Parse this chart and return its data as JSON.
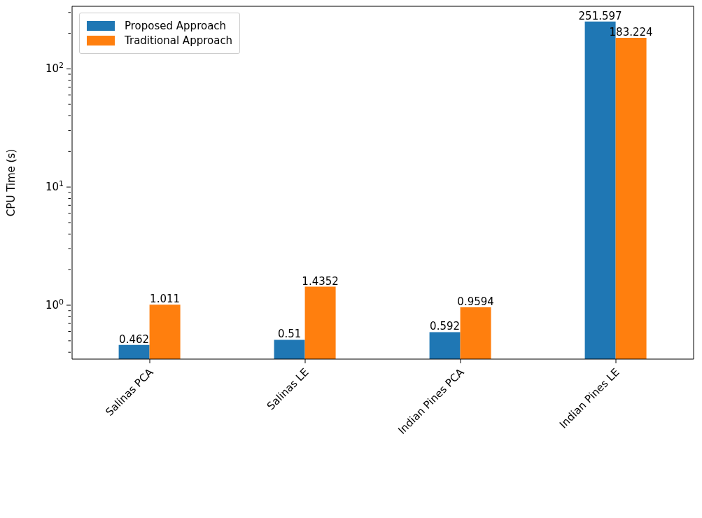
{
  "chart_data": {
    "type": "bar",
    "ylabel": "CPU Time (s)",
    "categories": [
      "Salinas PCA",
      "Salinas LE",
      "Indian Pines PCA",
      "Indian Pines LE"
    ],
    "series": [
      {
        "name": "Proposed Approach",
        "color": "#1f77b4",
        "values": [
          0.462,
          0.51,
          0.592,
          251.597
        ]
      },
      {
        "name": "Traditional Approach",
        "color": "#ff7f0e",
        "values": [
          1.011,
          1.4352,
          0.9594,
          183.224
        ]
      }
    ],
    "log": "y",
    "ylim": [
      0.35,
      338
    ],
    "yticks": [
      {
        "value": 0.4,
        "label": null
      },
      {
        "value": 0.5,
        "label": null
      },
      {
        "value": 0.6,
        "label": null
      },
      {
        "value": 0.7,
        "label": null
      },
      {
        "value": 0.8,
        "label": null
      },
      {
        "value": 0.9,
        "label": null
      },
      {
        "value": 1,
        "label": "10$^{0}$"
      },
      {
        "value": 2,
        "label": null
      },
      {
        "value": 3,
        "label": null
      },
      {
        "value": 4,
        "label": null
      },
      {
        "value": 5,
        "label": null
      },
      {
        "value": 6,
        "label": null
      },
      {
        "value": 7,
        "label": null
      },
      {
        "value": 8,
        "label": null
      },
      {
        "value": 9,
        "label": null
      },
      {
        "value": 10,
        "label": "10$^{1}$"
      },
      {
        "value": 20,
        "label": null
      },
      {
        "value": 30,
        "label": null
      },
      {
        "value": 40,
        "label": null
      },
      {
        "value": 50,
        "label": null
      },
      {
        "value": 60,
        "label": null
      },
      {
        "value": 70,
        "label": null
      },
      {
        "value": 80,
        "label": null
      },
      {
        "value": 90,
        "label": null
      },
      {
        "value": 100,
        "label": "10$^{2}$"
      },
      {
        "value": 200,
        "label": null
      },
      {
        "value": 300,
        "label": null
      }
    ],
    "data_labels": true,
    "legend": "top left",
    "grid": false
  }
}
